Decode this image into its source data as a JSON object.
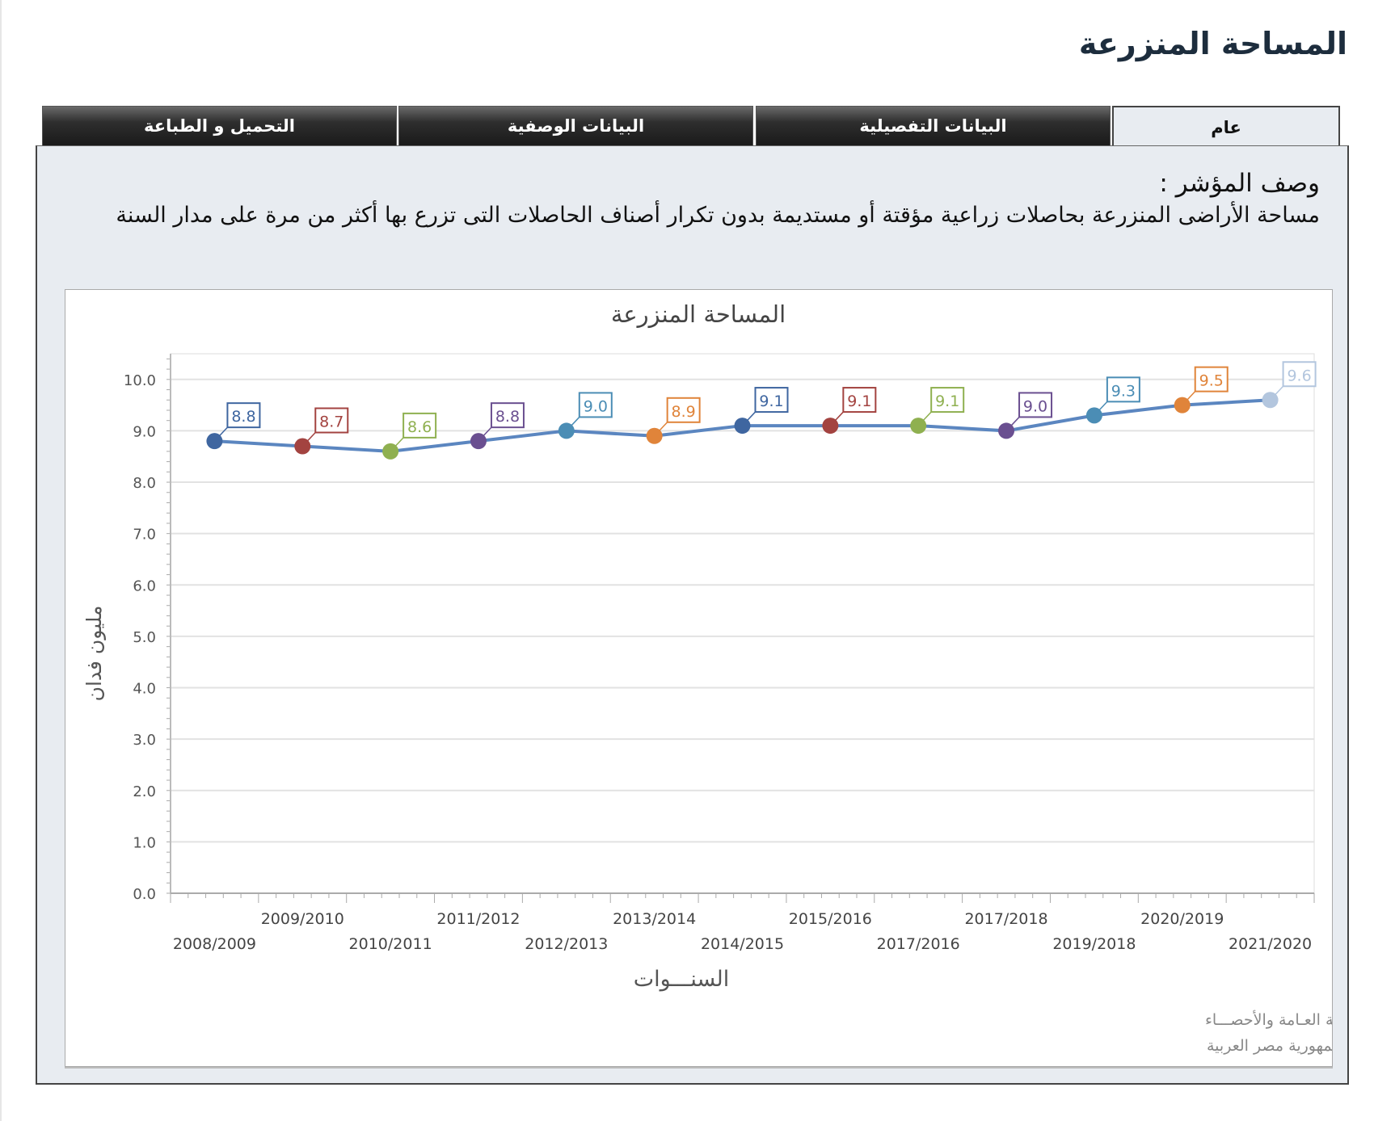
{
  "page": {
    "title": "المساحة المنزرعة"
  },
  "tabs": [
    {
      "label": "عام",
      "active": true
    },
    {
      "label": "البيانات التفصيلية",
      "active": false
    },
    {
      "label": "البيانات الوصفية",
      "active": false
    },
    {
      "label": "التحميل و الطباعة",
      "active": false
    }
  ],
  "description": {
    "heading": "وصف المؤشر :",
    "text": "مساحة الأراضى المنزرعة بحاصلات زراعية مؤقتة أو مستديمة بدون تكرار أصناف الحاصلات التى تزرع بها أكثر من مرة على مدار السنة"
  },
  "chart_data": {
    "type": "line",
    "title": "المساحة المنزرعة",
    "xlabel": "السنـــوات",
    "ylabel": "مليون فدان",
    "categories": [
      "2008/2009",
      "2009/2010",
      "2010/2011",
      "2011/2012",
      "2012/2013",
      "2013/2014",
      "2014/2015",
      "2015/2016",
      "2017/2016",
      "2017/2018",
      "2019/2018",
      "2020/2019",
      "2021/2020"
    ],
    "values": [
      8.8,
      8.7,
      8.6,
      8.8,
      9.0,
      8.9,
      9.1,
      9.1,
      9.1,
      9.0,
      9.3,
      9.5,
      9.6
    ],
    "data_labels": [
      "8.8",
      "8.7",
      "8.6",
      "8.8",
      "9.0",
      "8.9",
      "9.1",
      "9.1",
      "9.1",
      "9.0",
      "9.3",
      "9.5",
      "9.6"
    ],
    "ylim": [
      0,
      10.5
    ],
    "yticks": [
      "0.0",
      "1.0",
      "2.0",
      "3.0",
      "4.0",
      "5.0",
      "6.0",
      "7.0",
      "8.0",
      "9.0",
      "10.0"
    ],
    "grid": true,
    "line_color": "#5b86c0",
    "point_colors": [
      "#3f66a0",
      "#a34340",
      "#8fb050",
      "#6a4f90",
      "#4b8db5",
      "#e0843a",
      "#3f66a0",
      "#a34340",
      "#8fb050",
      "#6a4f90",
      "#4b8db5",
      "#e0843a",
      "#b3c6de"
    ],
    "footer": [
      "حقوق الملكية للجهـــاز المركزي للتعبئة العـامة والأحصـــاء",
      "المصدر الأساسي للأحصاءات الرسمية لجمهورية مصر العربية"
    ]
  }
}
